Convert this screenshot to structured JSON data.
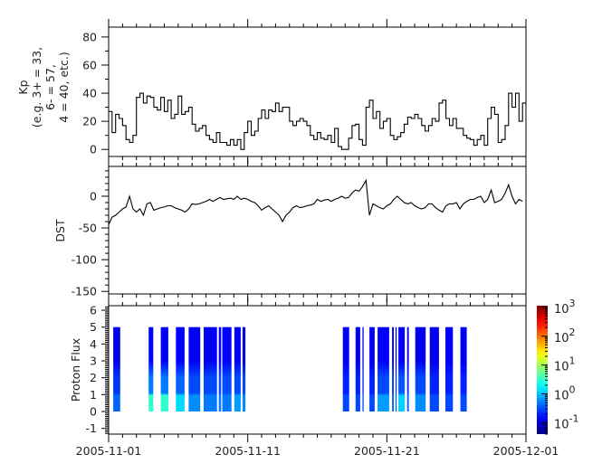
{
  "x_axis": {
    "type": "date",
    "range": [
      "2005-11-01",
      "2005-12-01"
    ],
    "tick_labels": [
      "2005-11-01",
      "2005-11-11",
      "2005-11-21",
      "2005-12-01"
    ],
    "minor_tick_interval_days": 1
  },
  "chart_data": [
    {
      "type": "line",
      "step": true,
      "ylabel_lines": [
        "Kp",
        "(e.g. 3+ = 33,",
        "6- = 57,",
        "4 = 40, etc.)"
      ],
      "ylim": [
        -5,
        87
      ],
      "yticks": [
        0,
        20,
        40,
        60,
        80
      ],
      "tick_labels": [
        "0",
        "20",
        "40",
        "60",
        "80"
      ],
      "color": "#000000",
      "start": "2005-11-01 00:00",
      "cadence_hours": 6,
      "values": [
        27,
        12,
        25,
        22,
        17,
        7,
        5,
        10,
        37,
        40,
        33,
        38,
        37,
        30,
        28,
        37,
        27,
        35,
        22,
        25,
        38,
        25,
        27,
        30,
        18,
        13,
        15,
        17,
        10,
        7,
        5,
        12,
        5,
        5,
        3,
        7,
        3,
        7,
        0,
        12,
        20,
        10,
        13,
        22,
        28,
        22,
        28,
        27,
        33,
        27,
        30,
        30,
        20,
        17,
        20,
        22,
        20,
        17,
        10,
        7,
        12,
        8,
        7,
        10,
        5,
        15,
        2,
        0,
        0,
        8,
        17,
        18,
        7,
        3,
        30,
        35,
        22,
        27,
        15,
        20,
        22,
        10,
        7,
        9,
        12,
        18,
        23,
        22,
        25,
        22,
        17,
        13,
        17,
        22,
        20,
        33,
        35,
        22,
        17,
        22,
        15,
        15,
        10,
        8,
        7,
        3,
        7,
        10,
        3,
        22,
        30,
        25,
        5,
        7,
        17,
        40,
        30,
        40,
        20,
        33
      ]
    },
    {
      "type": "line",
      "ylabel": "DST",
      "ylim": [
        -154,
        47
      ],
      "yticks": [
        0,
        -50,
        -100,
        -150
      ],
      "tick_labels": [
        "0",
        "-50",
        "-100",
        "-150"
      ],
      "color": "#000000",
      "start": "2005-11-01 00:00",
      "cadence_hours": 6,
      "values": [
        -45,
        -33,
        -30,
        -25,
        -20,
        -17,
        0,
        -20,
        -25,
        -20,
        -30,
        -12,
        -10,
        -22,
        -20,
        -18,
        -17,
        -15,
        -15,
        -18,
        -20,
        -22,
        -25,
        -20,
        -12,
        -13,
        -12,
        -10,
        -8,
        -5,
        -8,
        -5,
        -2,
        -5,
        -4,
        -3,
        -5,
        0,
        -5,
        -3,
        -5,
        -8,
        -10,
        -15,
        -22,
        -18,
        -15,
        -20,
        -25,
        -30,
        -40,
        -30,
        -25,
        -18,
        -15,
        -18,
        -17,
        -15,
        -14,
        -12,
        -5,
        -8,
        -6,
        -5,
        -8,
        -5,
        -3,
        0,
        -3,
        -2,
        5,
        10,
        8,
        15,
        25,
        -30,
        -12,
        -15,
        -18,
        -20,
        -15,
        -12,
        -5,
        0,
        -5,
        -10,
        -12,
        -10,
        -15,
        -18,
        -20,
        -18,
        -12,
        -12,
        -18,
        -22,
        -25,
        -15,
        -12,
        -12,
        -10,
        -20,
        -12,
        -8,
        -5,
        -5,
        -2,
        0,
        -10,
        -5,
        10,
        -10,
        -8,
        -5,
        5,
        18,
        0,
        -12,
        -5,
        -8
      ]
    },
    {
      "type": "heatmap",
      "ylabel": "Proton Flux",
      "ylim": [
        -1.34,
        6.27
      ],
      "yticks": [
        -1,
        0,
        1,
        2,
        3,
        4,
        5,
        6
      ],
      "tick_labels": [
        "-1",
        "0",
        "1",
        "2",
        "3",
        "4",
        "5",
        "6"
      ],
      "energy_bins": [
        [
          0,
          1
        ],
        [
          1,
          2
        ],
        [
          2,
          5
        ]
      ],
      "colorscale": "jet",
      "color_scale_log": true,
      "color_range": [
        0.04,
        1150
      ],
      "colorbar_ticks": [
        {
          "base": "10",
          "exp": "3",
          "value": 1000
        },
        {
          "base": "10",
          "exp": "2",
          "value": 100
        },
        {
          "base": "10",
          "exp": "1",
          "value": 10
        },
        {
          "base": "10",
          "exp": "0",
          "value": 1
        },
        {
          "base": "10",
          "exp": "-1",
          "value": 0.1
        }
      ],
      "intervals": [
        {
          "start": "2005-11-01 08:00",
          "end": "2005-11-01 20:00",
          "flux": [
            0.4,
            0.25,
            0.13
          ]
        },
        {
          "start": "2005-11-03 21:00",
          "end": "2005-11-04 05:00",
          "flux": [
            3.0,
            0.5,
            0.15
          ]
        },
        {
          "start": "2005-11-04 18:00",
          "end": "2005-11-05 07:00",
          "flux": [
            3.0,
            0.5,
            0.13
          ]
        },
        {
          "start": "2005-11-05 20:00",
          "end": "2005-11-06 11:00",
          "flux": [
            1.3,
            0.4,
            0.14
          ]
        },
        {
          "start": "2005-11-06 18:00",
          "end": "2005-11-07 14:00",
          "flux": [
            0.6,
            0.3,
            0.13
          ]
        },
        {
          "start": "2005-11-07 20:00",
          "end": "2005-11-08 19:00",
          "flux": [
            0.5,
            0.3,
            0.13
          ]
        },
        {
          "start": "2005-11-08 22:00",
          "end": "2005-11-09 02:00",
          "flux": [
            0.5,
            0.3,
            0.13
          ]
        },
        {
          "start": "2005-11-09 04:00",
          "end": "2005-11-09 20:00",
          "flux": [
            0.5,
            0.3,
            0.14
          ]
        },
        {
          "start": "2005-11-10 01:00",
          "end": "2005-11-10 12:00",
          "flux": [
            0.7,
            0.3,
            0.13
          ]
        },
        {
          "start": "2005-11-10 15:00",
          "end": "2005-11-10 20:00",
          "flux": [
            0.6,
            0.3,
            0.12
          ]
        },
        {
          "start": "2005-11-17 20:00",
          "end": "2005-11-18 07:00",
          "flux": [
            0.3,
            0.2,
            0.13
          ]
        },
        {
          "start": "2005-11-18 18:00",
          "end": "2005-11-19 02:00",
          "flux": [
            0.3,
            0.2,
            0.13
          ]
        },
        {
          "start": "2005-11-19 06:00",
          "end": "2005-11-19 08:00",
          "flux": [
            0.3,
            0.2,
            0.13
          ]
        },
        {
          "start": "2005-11-19 18:00",
          "end": "2005-11-20 03:00",
          "flux": [
            0.3,
            0.2,
            0.13
          ]
        },
        {
          "start": "2005-11-20 08:00",
          "end": "2005-11-21 04:00",
          "flux": [
            0.7,
            0.3,
            0.14
          ]
        },
        {
          "start": "2005-11-21 09:00",
          "end": "2005-11-21 12:00",
          "flux": [
            0.4,
            0.25,
            0.13
          ]
        },
        {
          "start": "2005-11-21 15:00",
          "end": "2005-11-21 17:00",
          "flux": [
            0.4,
            0.25,
            0.13
          ]
        },
        {
          "start": "2005-11-21 20:00",
          "end": "2005-11-22 07:00",
          "flux": [
            1.2,
            0.35,
            0.14
          ]
        },
        {
          "start": "2005-11-22 11:00",
          "end": "2005-11-22 14:00",
          "flux": [
            0.4,
            0.25,
            0.13
          ]
        },
        {
          "start": "2005-11-23 01:00",
          "end": "2005-11-23 19:00",
          "flux": [
            0.6,
            0.3,
            0.12
          ]
        },
        {
          "start": "2005-11-24 02:00",
          "end": "2005-11-24 18:00",
          "flux": [
            0.3,
            0.2,
            0.13
          ]
        },
        {
          "start": "2005-11-25 05:00",
          "end": "2005-11-25 18:00",
          "flux": [
            0.3,
            0.2,
            0.13
          ]
        },
        {
          "start": "2005-11-26 07:00",
          "end": "2005-11-26 18:00",
          "flux": [
            0.3,
            0.2,
            0.13
          ]
        }
      ]
    }
  ]
}
